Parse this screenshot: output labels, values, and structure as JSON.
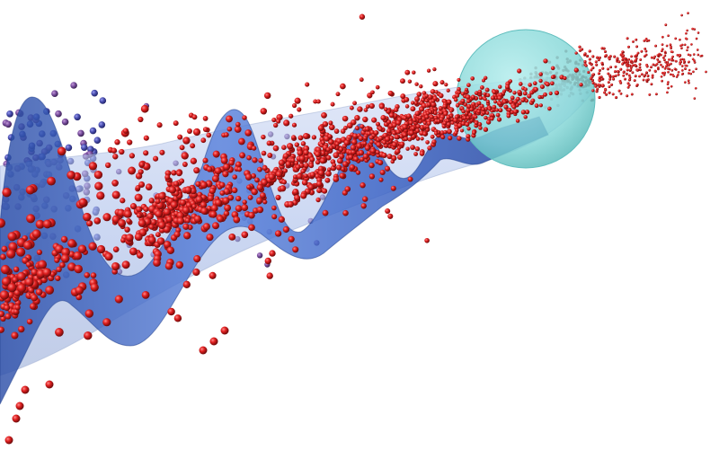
{
  "scene": {
    "background": "#ffffff",
    "colors": {
      "tube_fill": "#9fb5e6",
      "tube_edge": "#7f93c0",
      "wave_fill": "#3f67c8",
      "wave_dark": "#24449a",
      "sphere_fill": "#7fd5d5",
      "sphere_edge": "#5fbdbd",
      "particle_red": "#e02020",
      "particle_dark": "#8a1010",
      "particle_blue": "#4a4fb0",
      "particle_purple": "#7a4fa0"
    },
    "icons": [
      "particle-cloud",
      "sphere",
      "wave-surface"
    ]
  }
}
